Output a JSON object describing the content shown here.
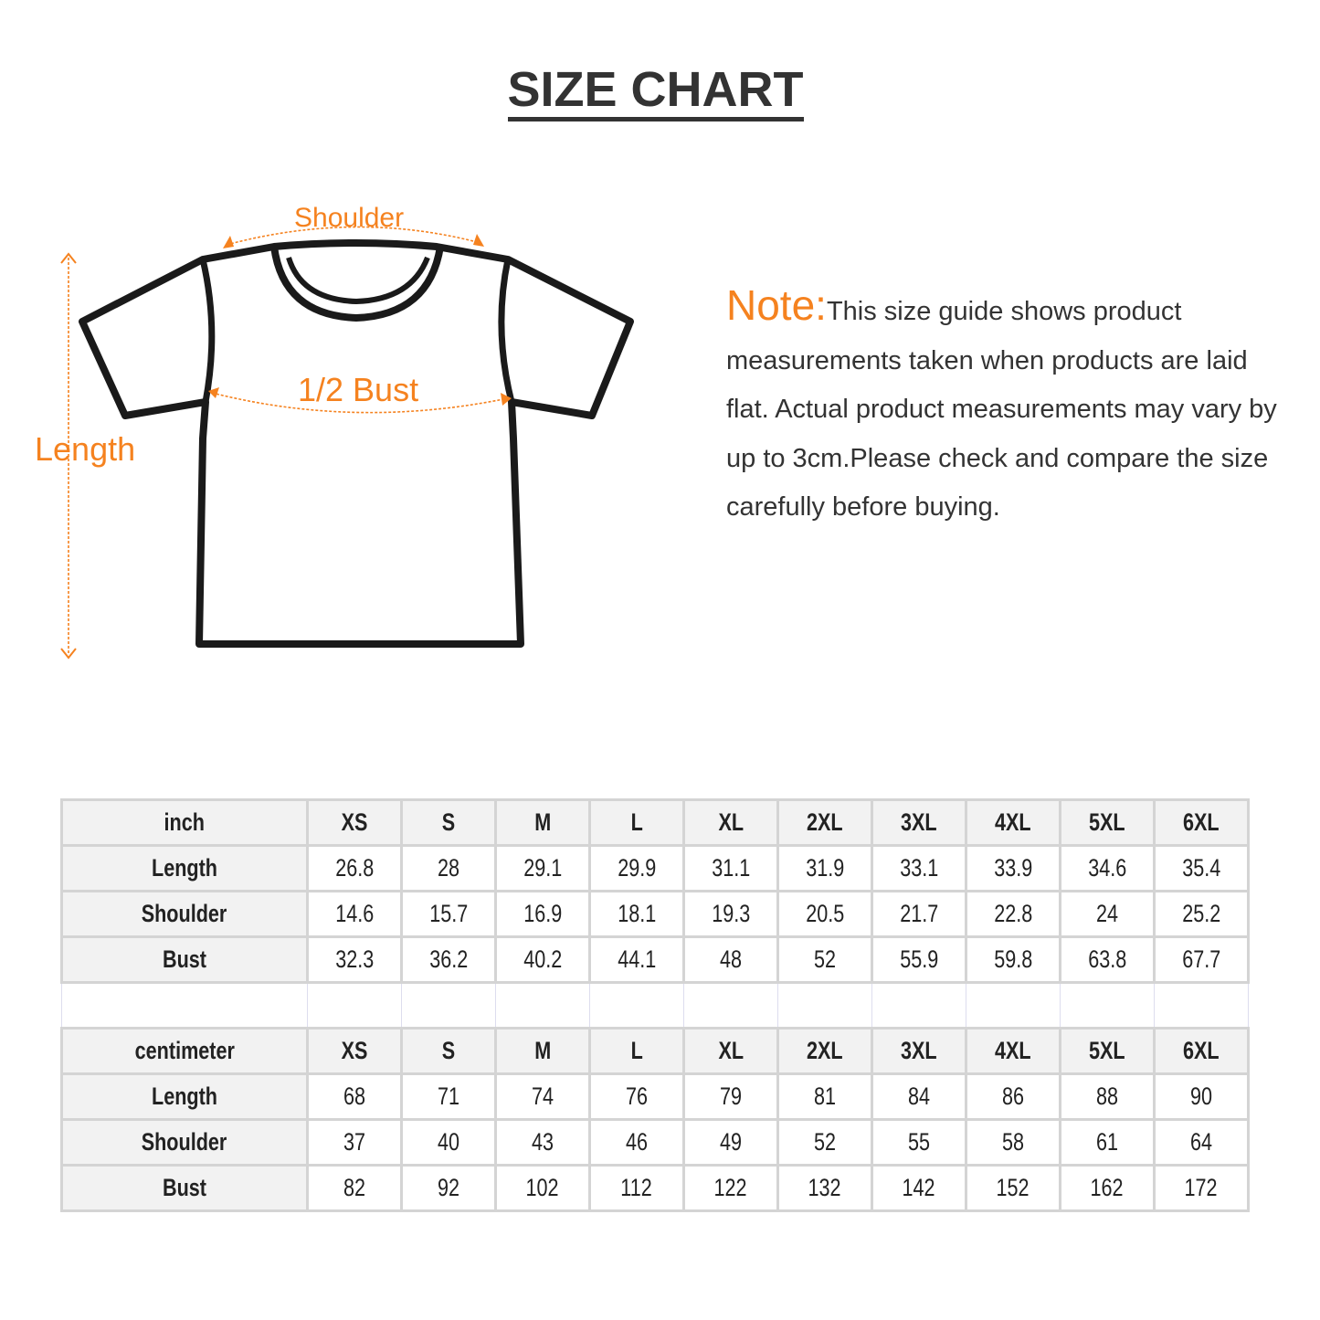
{
  "title": "SIZE CHART",
  "diagram": {
    "shoulder": "Shoulder",
    "bust": "1/2 Bust",
    "length": "Length"
  },
  "note": {
    "heading": "Note:",
    "text": "This size guide shows product measurements taken when products are laid flat. Actual product measurements may vary by up to 3cm.Please check and compare the size carefully before buying."
  },
  "colors": {
    "accent": "#f5821f",
    "text": "#333333",
    "grid": "#d4d4d4",
    "header_bg": "#f2f2f2"
  },
  "tables": [
    {
      "unit": "inch",
      "sizes": [
        "XS",
        "S",
        "M",
        "L",
        "XL",
        "2XL",
        "3XL",
        "4XL",
        "5XL",
        "6XL"
      ],
      "rows": [
        {
          "label": "Length",
          "values": [
            "26.8",
            "28",
            "29.1",
            "29.9",
            "31.1",
            "31.9",
            "33.1",
            "33.9",
            "34.6",
            "35.4"
          ]
        },
        {
          "label": "Shoulder",
          "values": [
            "14.6",
            "15.7",
            "16.9",
            "18.1",
            "19.3",
            "20.5",
            "21.7",
            "22.8",
            "24",
            "25.2"
          ]
        },
        {
          "label": "Bust",
          "values": [
            "32.3",
            "36.2",
            "40.2",
            "44.1",
            "48",
            "52",
            "55.9",
            "59.8",
            "63.8",
            "67.7"
          ]
        }
      ]
    },
    {
      "unit": "centimeter",
      "sizes": [
        "XS",
        "S",
        "M",
        "L",
        "XL",
        "2XL",
        "3XL",
        "4XL",
        "5XL",
        "6XL"
      ],
      "rows": [
        {
          "label": "Length",
          "values": [
            "68",
            "71",
            "74",
            "76",
            "79",
            "81",
            "84",
            "86",
            "88",
            "90"
          ]
        },
        {
          "label": "Shoulder",
          "values": [
            "37",
            "40",
            "43",
            "46",
            "49",
            "52",
            "55",
            "58",
            "61",
            "64"
          ]
        },
        {
          "label": "Bust",
          "values": [
            "82",
            "92",
            "102",
            "112",
            "122",
            "132",
            "142",
            "152",
            "162",
            "172"
          ]
        }
      ]
    }
  ]
}
